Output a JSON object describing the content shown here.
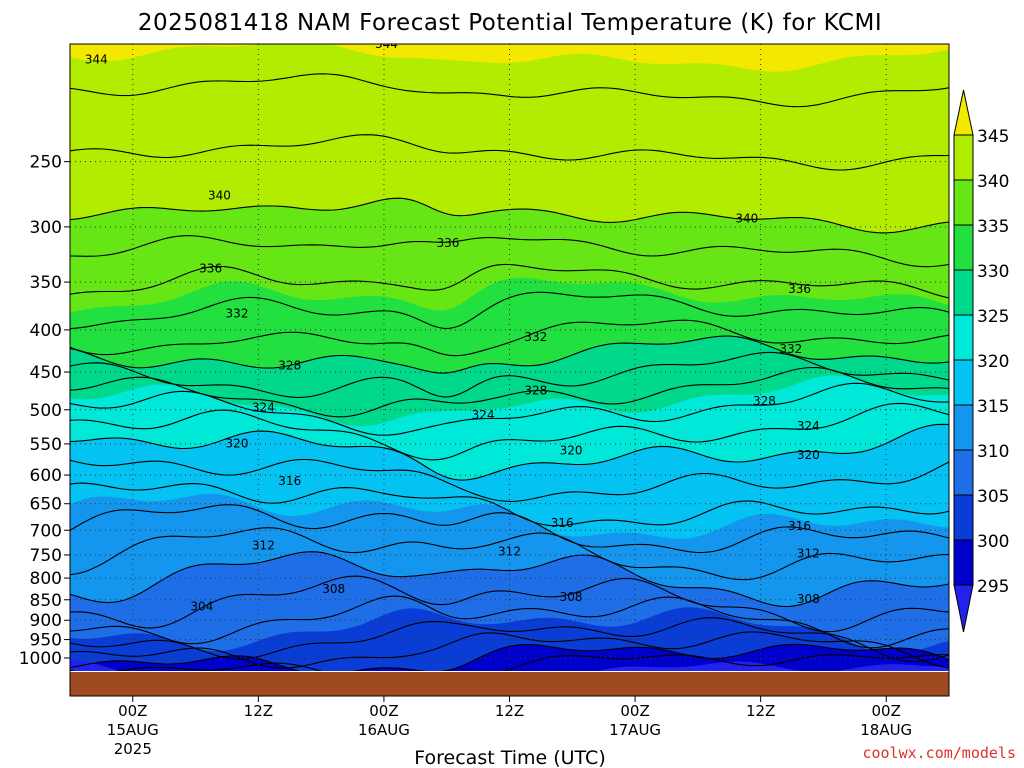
{
  "title": "2025081418 NAM Forecast Potential Temperature (K) for KCMI",
  "credit": "coolwx.com/models",
  "chart_data": {
    "type": "heatmap",
    "title": "2025081418 NAM Forecast Potential Temperature (K) for KCMI",
    "xlabel": "Forecast Time (UTC)",
    "ylabel": "",
    "y_scale": "log-pressure",
    "y_ticks": [
      250,
      300,
      350,
      400,
      450,
      500,
      550,
      600,
      650,
      700,
      750,
      800,
      850,
      900,
      950,
      1000
    ],
    "x_ticks": [
      {
        "hour": "00Z",
        "date": "15AUG",
        "year": "2025"
      },
      {
        "hour": "12Z",
        "date": "",
        "year": ""
      },
      {
        "hour": "00Z",
        "date": "16AUG",
        "year": ""
      },
      {
        "hour": "12Z",
        "date": "",
        "year": ""
      },
      {
        "hour": "00Z",
        "date": "17AUG",
        "year": ""
      },
      {
        "hour": "12Z",
        "date": "",
        "year": ""
      },
      {
        "hour": "00Z",
        "date": "18AUG",
        "year": ""
      }
    ],
    "x_tick_offsets_hours": [
      0,
      12,
      24,
      36,
      48,
      60,
      72
    ],
    "x_range_hours": [
      -6,
      78
    ],
    "grid": true,
    "colorbar": {
      "levels": [
        295,
        300,
        305,
        310,
        315,
        320,
        325,
        330,
        335,
        340,
        345
      ],
      "colors": [
        "#2222ee",
        "#0000cc",
        "#0a3cd6",
        "#1e6ee8",
        "#1496ee",
        "#04c2f2",
        "#00e8d8",
        "#00d88c",
        "#22e040",
        "#66e614",
        "#b2ec00",
        "#f2e800"
      ]
    },
    "contour_labels": [
      {
        "t": 0.03,
        "p": 188,
        "v": 344
      },
      {
        "t": 0.36,
        "p": 180,
        "v": 344
      },
      {
        "t": 0.17,
        "p": 275,
        "v": 340
      },
      {
        "t": 0.77,
        "p": 293,
        "v": 340
      },
      {
        "t": 0.16,
        "p": 337,
        "v": 336
      },
      {
        "t": 0.43,
        "p": 314,
        "v": 336
      },
      {
        "t": 0.83,
        "p": 357,
        "v": 336
      },
      {
        "t": 0.19,
        "p": 382,
        "v": 332
      },
      {
        "t": 0.53,
        "p": 408,
        "v": 332
      },
      {
        "t": 0.82,
        "p": 422,
        "v": 332
      },
      {
        "t": 0.25,
        "p": 442,
        "v": 328
      },
      {
        "t": 0.53,
        "p": 474,
        "v": 328
      },
      {
        "t": 0.79,
        "p": 488,
        "v": 328
      },
      {
        "t": 0.22,
        "p": 497,
        "v": 324
      },
      {
        "t": 0.47,
        "p": 507,
        "v": 324
      },
      {
        "t": 0.84,
        "p": 523,
        "v": 324
      },
      {
        "t": 0.19,
        "p": 549,
        "v": 320
      },
      {
        "t": 0.57,
        "p": 560,
        "v": 320
      },
      {
        "t": 0.84,
        "p": 567,
        "v": 320
      },
      {
        "t": 0.25,
        "p": 610,
        "v": 316
      },
      {
        "t": 0.56,
        "p": 686,
        "v": 316
      },
      {
        "t": 0.83,
        "p": 692,
        "v": 316
      },
      {
        "t": 0.22,
        "p": 730,
        "v": 312
      },
      {
        "t": 0.5,
        "p": 743,
        "v": 312
      },
      {
        "t": 0.84,
        "p": 747,
        "v": 312
      },
      {
        "t": 0.3,
        "p": 825,
        "v": 308
      },
      {
        "t": 0.57,
        "p": 843,
        "v": 308
      },
      {
        "t": 0.84,
        "p": 848,
        "v": 308
      },
      {
        "t": 0.15,
        "p": 866,
        "v": 304
      }
    ]
  }
}
